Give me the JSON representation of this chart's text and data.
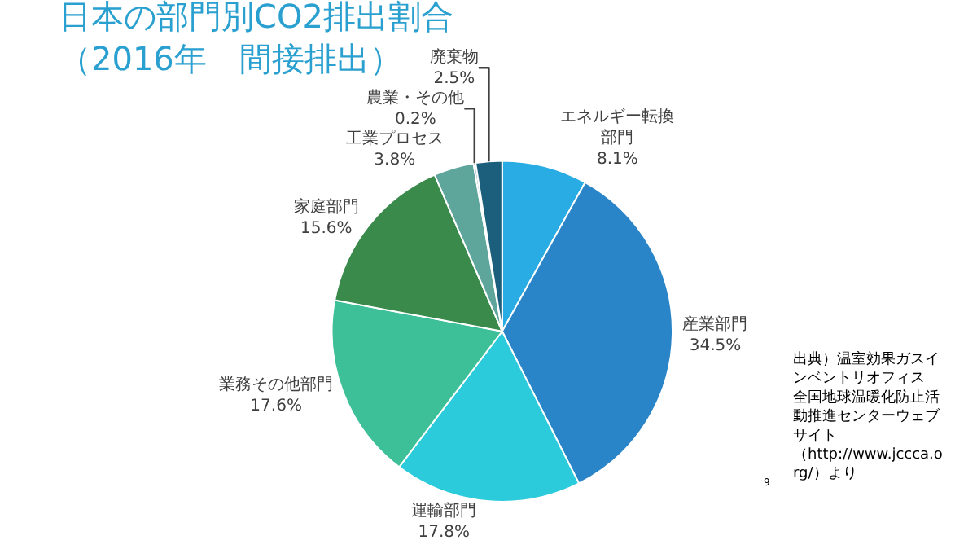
{
  "chart_data": {
    "type": "pie",
    "title": "日本の部門別CO2排出割合（2016年　間接排出）",
    "categories": [
      "エネルギー転換部門",
      "産業部門",
      "運輸部門",
      "業務その他部門",
      "家庭部門",
      "工業プロセス",
      "農業・その他",
      "廃棄物"
    ],
    "values": [
      8.1,
      34.5,
      17.8,
      17.6,
      15.6,
      3.8,
      0.2,
      2.5
    ],
    "value_labels": [
      "8.1%",
      "34.5%",
      "17.8%",
      "17.6%",
      "15.6%",
      "3.8%",
      "0.2%",
      "2.5%"
    ],
    "colors": [
      "#29ace3",
      "#2a84c8",
      "#2ccbdb",
      "#3dbf97",
      "#3a8a4c",
      "#5ea59c",
      "#4a7f9a",
      "#1b5f7c"
    ],
    "annotations": [
      "出典）温室効果ガスインベントリオフィス全国地球温暖化防止活動推進センターウェブサイト（http://www.jccca.org/）より",
      "9"
    ],
    "legend": false
  }
}
